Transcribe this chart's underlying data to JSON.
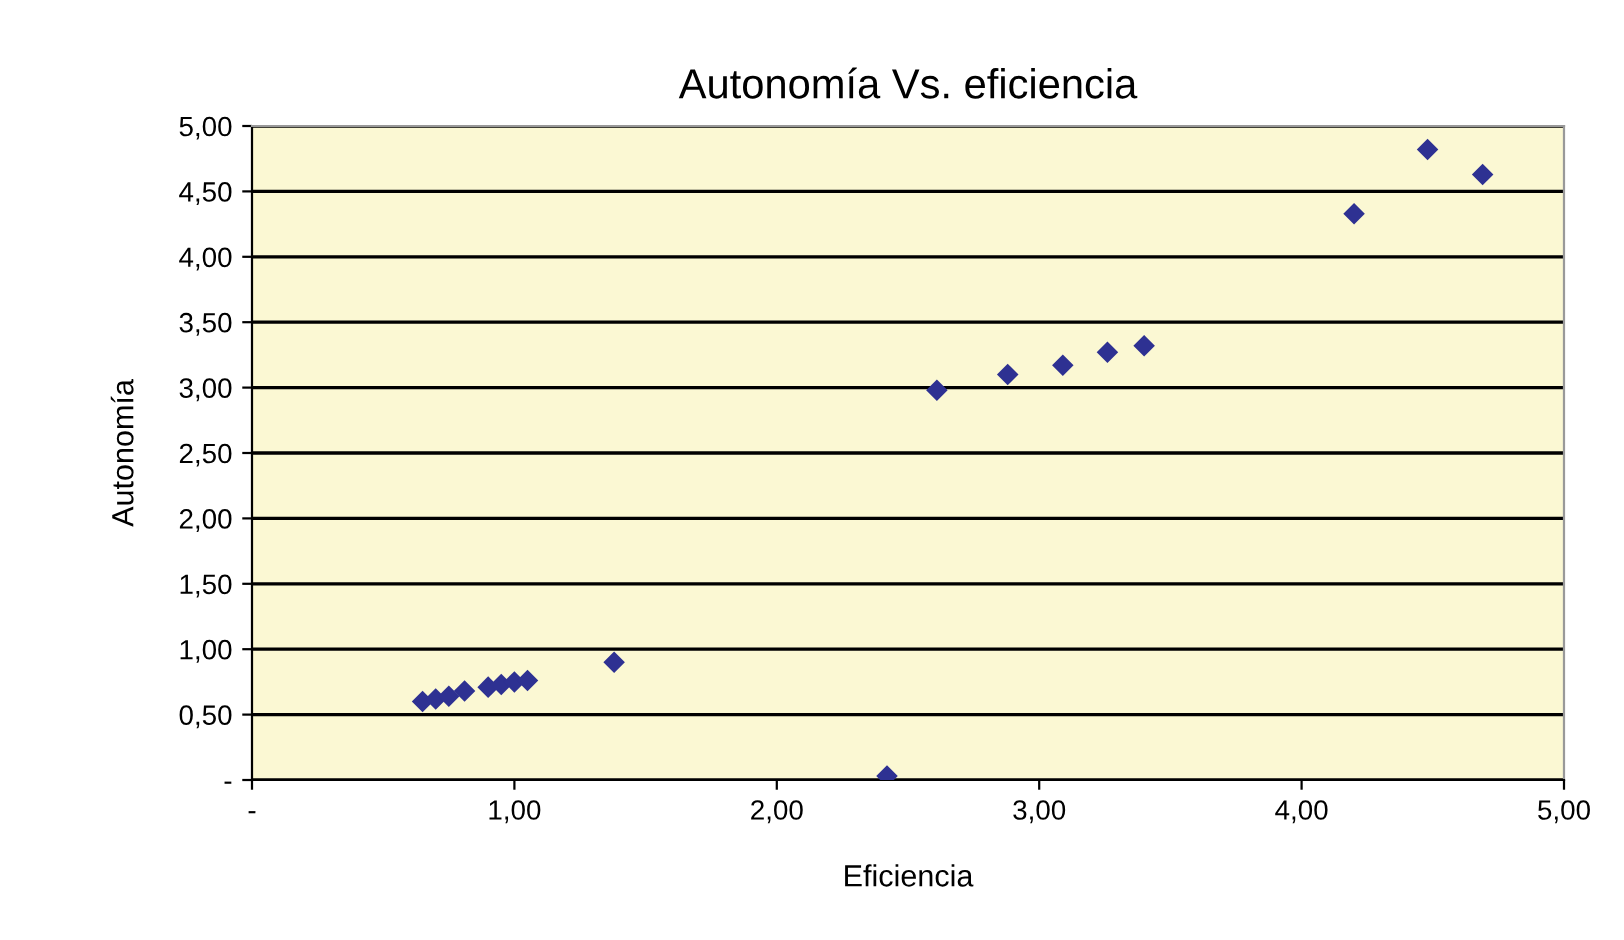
{
  "chart_data": {
    "type": "scatter",
    "title": "Autonomía Vs. eficiencia",
    "xlabel": "Eficiencia",
    "ylabel": "Autonomía",
    "x": [
      0.65,
      0.7,
      0.75,
      0.81,
      0.9,
      0.95,
      1.0,
      1.05,
      1.38,
      2.42,
      2.61,
      2.88,
      3.09,
      3.26,
      3.4,
      4.2,
      4.48,
      4.69
    ],
    "series": [
      {
        "color": "#2e3192",
        "values": [
          0.6,
          0.62,
          0.64,
          0.68,
          0.71,
          0.73,
          0.75,
          0.76,
          0.9,
          0.03,
          2.98,
          3.1,
          3.17,
          3.27,
          3.32,
          4.33,
          4.82,
          4.63
        ]
      }
    ],
    "xlim": [
      0,
      5
    ],
    "ylim": [
      0,
      5
    ],
    "xticks": [
      {
        "value": 0,
        "label": "-"
      },
      {
        "value": 1,
        "label": "1,00"
      },
      {
        "value": 2,
        "label": "2,00"
      },
      {
        "value": 3,
        "label": "3,00"
      },
      {
        "value": 4,
        "label": "4,00"
      },
      {
        "value": 5,
        "label": "5,00"
      }
    ],
    "yticks": [
      {
        "value": 0,
        "label": "-"
      },
      {
        "value": 0.5,
        "label": "0,50"
      },
      {
        "value": 1,
        "label": "1,00"
      },
      {
        "value": 1.5,
        "label": "1,50"
      },
      {
        "value": 2,
        "label": "2,00"
      },
      {
        "value": 2.5,
        "label": "2,50"
      },
      {
        "value": 3,
        "label": "3,00"
      },
      {
        "value": 3.5,
        "label": "3,50"
      },
      {
        "value": 4,
        "label": "4,00"
      },
      {
        "value": 4.5,
        "label": "4,50"
      },
      {
        "value": 5,
        "label": "5,00"
      }
    ],
    "grid": "y",
    "marker": "diamond"
  }
}
